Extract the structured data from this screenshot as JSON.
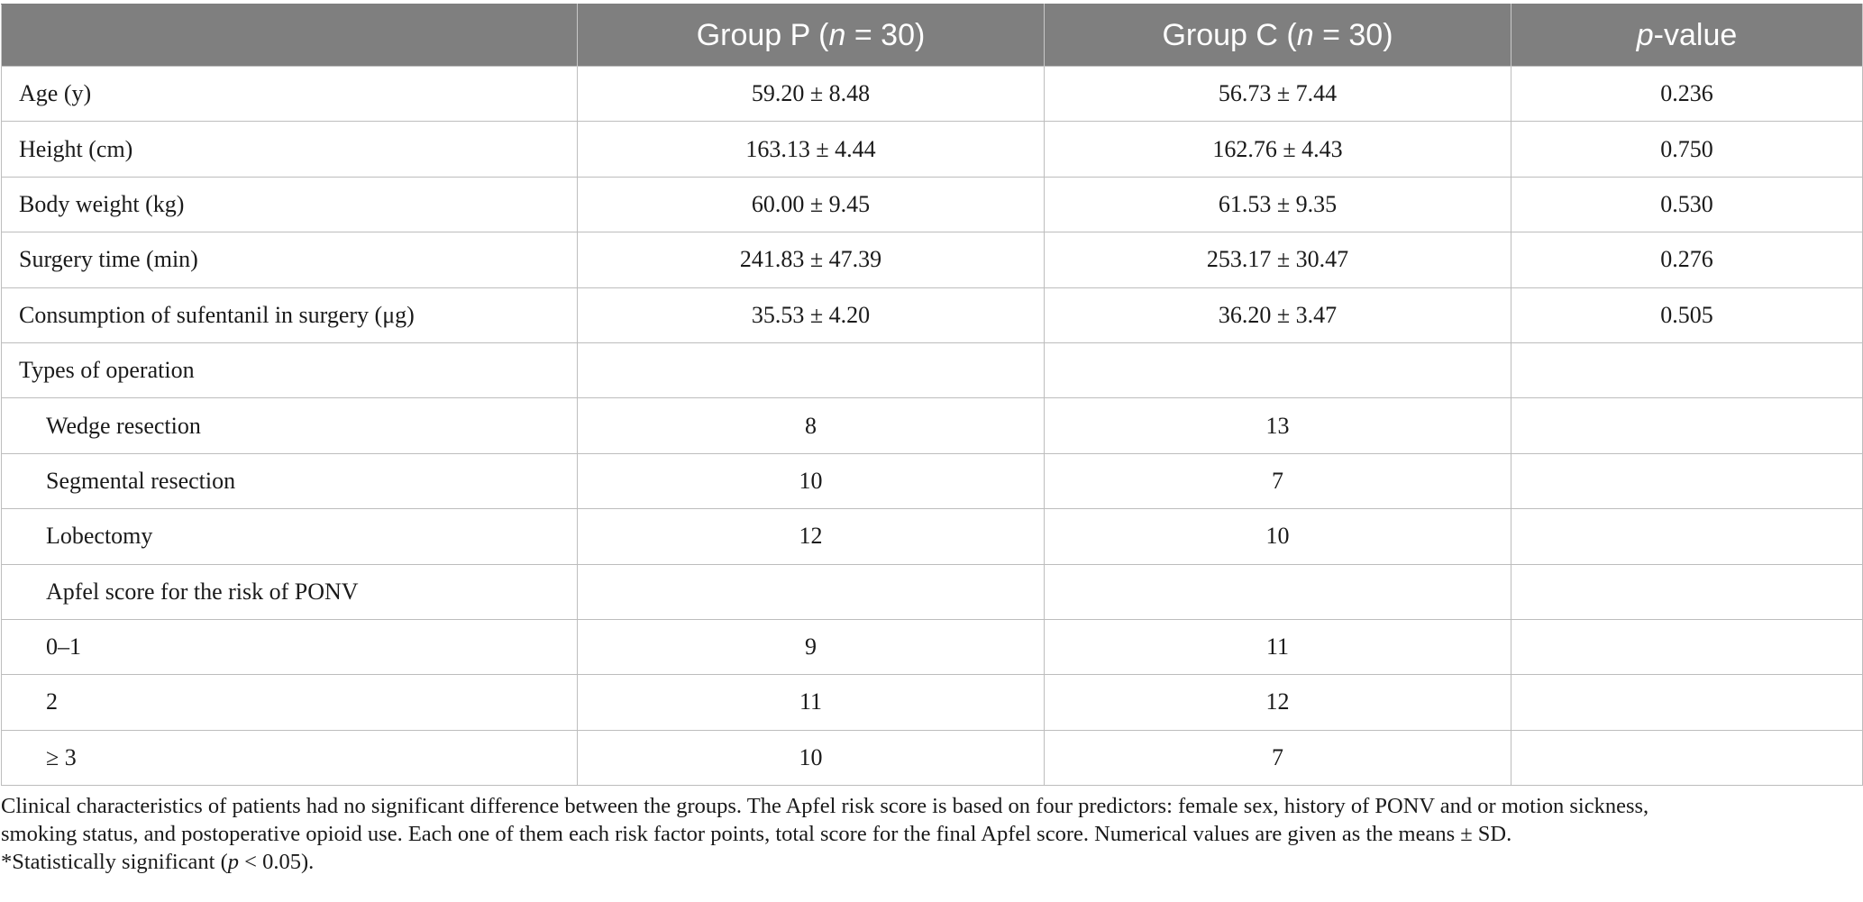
{
  "table": {
    "headers": {
      "col0": "",
      "col1_pre": "Group P (",
      "col1_n": "n",
      "col1_post": " = 30)",
      "col2_pre": "Group C (",
      "col2_n": "n",
      "col2_post": " = 30)",
      "col3_p": "p",
      "col3_post": "-value"
    },
    "rows": [
      {
        "label": "Age (y)",
        "p": "59.20 ± 8.48",
        "c": "56.73 ± 7.44",
        "pval": "0.236"
      },
      {
        "label": "Height (cm)",
        "p": "163.13 ± 4.44",
        "c": "162.76 ± 4.43",
        "pval": "0.750"
      },
      {
        "label": "Body weight (kg)",
        "p": "60.00 ± 9.45",
        "c": "61.53 ± 9.35",
        "pval": "0.530"
      },
      {
        "label": "Surgery time (min)",
        "p": "241.83 ± 47.39",
        "c": "253.17 ± 30.47",
        "pval": "0.276"
      },
      {
        "label": "Consumption of sufentanil in surgery (μg)",
        "p": "35.53 ± 4.20",
        "c": "36.20 ± 3.47",
        "pval": "0.505"
      },
      {
        "label": "Types of operation",
        "p": "",
        "c": "",
        "pval": ""
      },
      {
        "label": "Wedge resection",
        "p": "8",
        "c": "13",
        "pval": ""
      },
      {
        "label": "Segmental resection",
        "p": "10",
        "c": "7",
        "pval": ""
      },
      {
        "label": "Lobectomy",
        "p": "12",
        "c": "10",
        "pval": ""
      },
      {
        "label": "Apfel score for the risk of PONV",
        "p": "",
        "c": "",
        "pval": ""
      },
      {
        "label": "0–1",
        "p": "9",
        "c": "11",
        "pval": ""
      },
      {
        "label": "2",
        "p": "11",
        "c": "12",
        "pval": ""
      },
      {
        "label": "≥ 3",
        "p": "10",
        "c": "7",
        "pval": ""
      }
    ]
  },
  "footnote": {
    "line1": "Clinical characteristics of patients had no significant difference between the groups. The Apfel risk score is based on four predictors: female sex, history of PONV and or motion sickness,",
    "line2": "smoking status, and postoperative opioid use. Each one of them each risk factor points, total score for the final Apfel score. Numerical values are given as the means ± SD.",
    "line3_pre": "*Statistically significant (",
    "line3_p": "p",
    "line3_post": " < 0.05)."
  },
  "colors": {
    "header_bg": "#7f7f7f",
    "header_text": "#ffffff",
    "grid": "#bdbdbd",
    "text": "#1a1a1a"
  }
}
